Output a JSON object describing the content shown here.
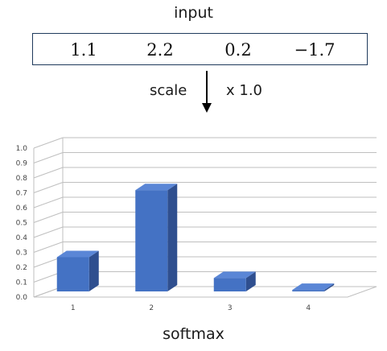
{
  "diagram": {
    "input_title": "input",
    "input_values": [
      "1.1",
      "2.2",
      "0.2",
      "−1.7"
    ],
    "operation_label": "scale",
    "scale_label": "x 1.0",
    "colors": {
      "bar_front": "#4472c4",
      "bar_side": "#2f4f8f",
      "bar_top": "#5a86d6",
      "grid": "#bfbfbf",
      "box_border": "#1f3a5c"
    }
  },
  "chart_data": {
    "type": "bar",
    "categories": [
      "1",
      "2",
      "3",
      "4"
    ],
    "values": [
      0.23,
      0.68,
      0.09,
      0.01
    ],
    "xlabel": "softmax",
    "ylim": [
      0,
      1.0
    ],
    "yticks": [
      "0.0",
      "0.1",
      "0.2",
      "0.3",
      "0.4",
      "0.5",
      "0.6",
      "0.7",
      "0.8",
      "0.9",
      "1.0"
    ],
    "grid": true,
    "style": "3d-column"
  }
}
